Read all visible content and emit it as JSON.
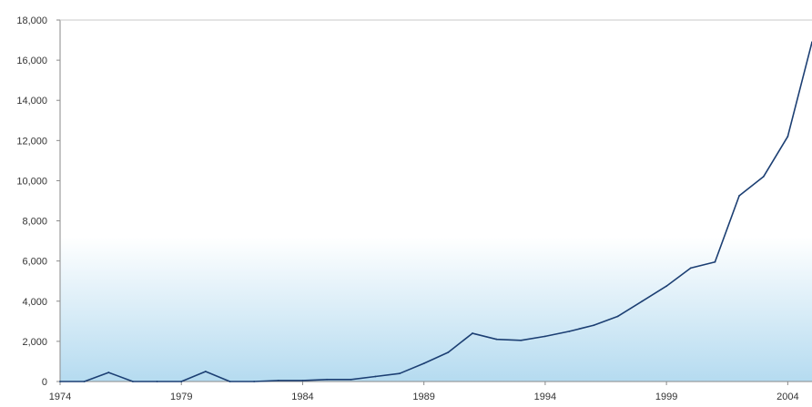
{
  "chart_data": {
    "type": "area",
    "title": "",
    "xlabel": "",
    "ylabel": "",
    "xlim": [
      1974,
      2005
    ],
    "ylim": [
      0,
      18000
    ],
    "x_ticks": [
      1974,
      1979,
      1984,
      1989,
      1994,
      1999,
      2004
    ],
    "y_ticks": [
      0,
      2000,
      4000,
      6000,
      8000,
      10000,
      12000,
      14000,
      16000,
      18000
    ],
    "x_tick_labels": [
      "1974",
      "1979",
      "1984",
      "1989",
      "1994",
      "1999",
      "2004"
    ],
    "y_tick_labels": [
      "0",
      "2,000",
      "4,000",
      "6,000",
      "8,000",
      "10,000",
      "12,000",
      "14,000",
      "16,000",
      "18,000"
    ],
    "grid": false,
    "legend": "none",
    "series": [
      {
        "x": [
          1974,
          1975,
          1976,
          1977,
          1978,
          1979,
          1980,
          1981,
          1982,
          1983,
          1984,
          1985,
          1986,
          1987,
          1988,
          1989,
          1990,
          1991,
          1992,
          1993,
          1994,
          1995,
          1996,
          1997,
          1998,
          1999,
          2000,
          2001,
          2002,
          2003,
          2004,
          2005
        ],
        "values": [
          0,
          0,
          450,
          0,
          0,
          0,
          500,
          0,
          0,
          50,
          50,
          100,
          100,
          250,
          400,
          900,
          1450,
          2400,
          2100,
          2050,
          2250,
          2500,
          2800,
          3250,
          4000,
          4750,
          5650,
          5950,
          9250,
          10200,
          12200,
          16900
        ]
      }
    ],
    "colors": {
      "line": "#1c3f73",
      "fill_top": "#ffffff",
      "fill_bottom": "#a9d6ef",
      "axis": "#8a8a8a",
      "tick_text": "#333333"
    }
  }
}
